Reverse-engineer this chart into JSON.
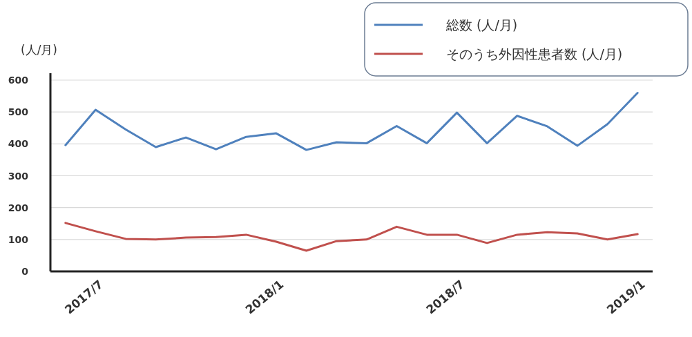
{
  "chart_data": {
    "type": "line",
    "ylabel": "(人/月)",
    "categories": [
      null,
      "2017/7",
      null,
      null,
      null,
      null,
      null,
      "2018/1",
      null,
      null,
      null,
      null,
      null,
      "2018/7",
      null,
      null,
      null,
      null,
      null,
      "2019/1"
    ],
    "series": [
      {
        "name": "総数 (人/月)",
        "color": "#4f81bd",
        "values": [
          396,
          507,
          445,
          390,
          420,
          383,
          422,
          433,
          381,
          405,
          402,
          456,
          402,
          498,
          402,
          488,
          455,
          394,
          462,
          560
        ]
      },
      {
        "name": "そのうち外因性患者数 (人/月)",
        "color": "#c0504d",
        "values": [
          152,
          126,
          102,
          100,
          106,
          108,
          115,
          93,
          65,
          95,
          100,
          140,
          115,
          115,
          89,
          115,
          123,
          119,
          100,
          117
        ]
      }
    ],
    "ylim": [
      0,
      600
    ],
    "yticks": [
      0,
      100,
      200,
      300,
      400,
      500,
      600
    ],
    "grid": "y",
    "legend": "top right",
    "marker": "none",
    "line_style": "solid"
  }
}
